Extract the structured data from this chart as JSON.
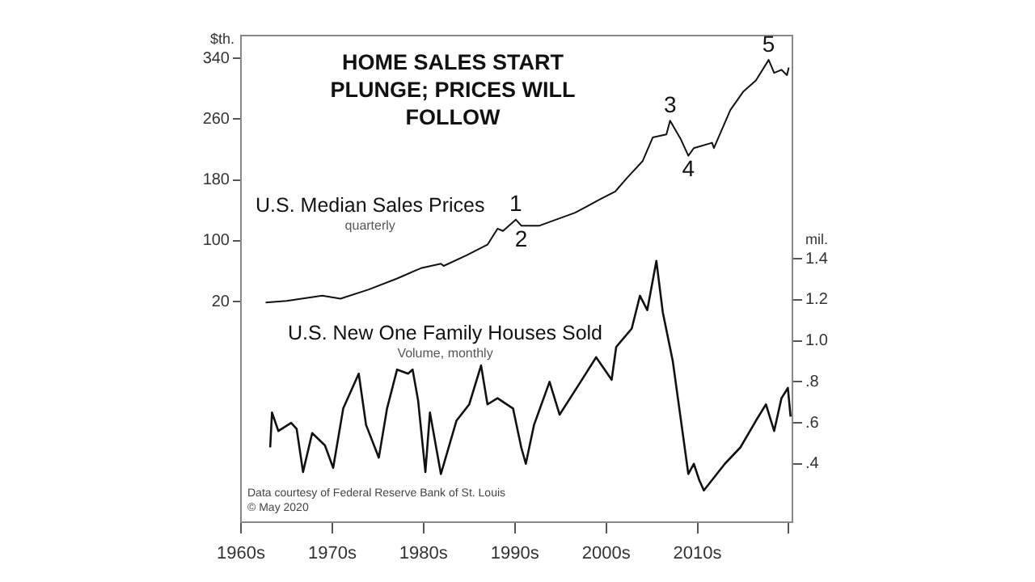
{
  "chart_data": {
    "type": "line",
    "title": "HOME SALES START PLUNGE; PRICES WILL FOLLOW",
    "ylabel": "$th.",
    "y2label": "mil.",
    "xlim": [
      1960,
      2020.4
    ],
    "xticks": [
      {
        "value": 1960,
        "label": "1960s"
      },
      {
        "value": 1970,
        "label": "1970s"
      },
      {
        "value": 1980,
        "label": "1980s"
      },
      {
        "value": 1990,
        "label": "1990s"
      },
      {
        "value": 2000,
        "label": "2000s"
      },
      {
        "value": 2010,
        "label": "2010s"
      },
      {
        "value": 2020,
        "label": null
      }
    ],
    "ylim": [
      -270,
      370
    ],
    "yticks": [
      20,
      100,
      180,
      260,
      340
    ],
    "y2lim": [
      0.115,
      2.49
    ],
    "y2ticks": [
      {
        "value": 0.4,
        "label": ".4"
      },
      {
        "value": 0.6,
        "label": ".6"
      },
      {
        "value": 0.8,
        "label": ".8"
      },
      {
        "value": 1.0,
        "label": "1.0"
      },
      {
        "value": 1.2,
        "label": "1.2"
      },
      {
        "value": 1.4,
        "label": "1.4"
      }
    ],
    "grid": false,
    "legend": false,
    "marker": "none",
    "line_style": "solid",
    "series": [
      {
        "name": "U.S. Median Sales Prices",
        "color": "#111111",
        "x": [
          1962.7,
          1965,
          1968.9,
          1970.9,
          1974,
          1977,
          1979.7,
          1981.9,
          1982.2,
          1984.7,
          1987,
          1988.1,
          1988.7,
          1990.1,
          1990.7,
          1992.7,
          1996.6,
          1999.4,
          2001,
          2002.3,
          2004,
          2005.1,
          2006.6,
          2007,
          2008.2,
          2009,
          2009.6,
          2011.6,
          2011.8,
          2013.6,
          2015,
          2016.4,
          2017.8,
          2018.4,
          2019.2,
          2019.8,
          2020
        ],
        "values": [
          19,
          21,
          28,
          24,
          36,
          50,
          64,
          70,
          67,
          81,
          95,
          116,
          113,
          128,
          120,
          120,
          137,
          155,
          165,
          183,
          205,
          236,
          240,
          258,
          233,
          212,
          222,
          229,
          222,
          272,
          296,
          311,
          338,
          321,
          325,
          318,
          328
        ]
      },
      {
        "name": "U.S. New One Family Houses Sold",
        "color": "#111111",
        "axis": "y2",
        "x": [
          1963.2,
          1963.4,
          1964.1,
          1965.5,
          1966.1,
          1966.8,
          1967.8,
          1969.2,
          1970.1,
          1971.2,
          1972.9,
          1973.7,
          1975.1,
          1976,
          1977.1,
          1978.3,
          1978.8,
          1979.4,
          1980.2,
          1980.7,
          1981.9,
          1983.6,
          1985,
          1986.3,
          1987,
          1988.1,
          1989.8,
          1990.7,
          1991.2,
          1992.1,
          1993.8,
          1994.9,
          1997.2,
          1998.9,
          2000.6,
          2001.1,
          2002.8,
          2003.7,
          2004.5,
          2005.5,
          2006.2,
          2007.3,
          2009,
          2009.6,
          2010.2,
          2010.7,
          2013,
          2014.7,
          2016.4,
          2017.5,
          2018.4,
          2019.2,
          2019.9,
          2020.2
        ],
        "values": [
          0.48,
          0.65,
          0.56,
          0.6,
          0.57,
          0.36,
          0.55,
          0.49,
          0.38,
          0.67,
          0.84,
          0.59,
          0.43,
          0.67,
          0.86,
          0.84,
          0.86,
          0.71,
          0.36,
          0.65,
          0.35,
          0.61,
          0.69,
          0.88,
          0.69,
          0.72,
          0.67,
          0.48,
          0.4,
          0.59,
          0.8,
          0.64,
          0.8,
          0.92,
          0.81,
          0.97,
          1.06,
          1.22,
          1.15,
          1.39,
          1.14,
          0.9,
          0.35,
          0.4,
          0.32,
          0.27,
          0.4,
          0.48,
          0.61,
          0.69,
          0.56,
          0.72,
          0.77,
          0.63
        ]
      }
    ],
    "annotations": [
      "quarterly",
      "Volume, monthly",
      "Data courtesy of Federal Reserve Bank of St. Louis",
      "© May 2020",
      {
        "text": "1",
        "x": 1990.1,
        "y": 128
      },
      {
        "text": "2",
        "x": 1990.7,
        "y": 120
      },
      {
        "text": "3",
        "x": 2007,
        "y": 258
      },
      {
        "text": "4",
        "x": 2009,
        "y": 212
      },
      {
        "text": "5",
        "x": 2017.8,
        "y": 338
      }
    ]
  }
}
